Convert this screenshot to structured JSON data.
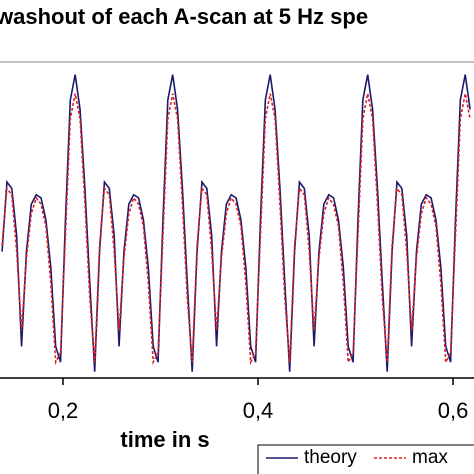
{
  "chart_data": {
    "type": "line",
    "title": "washout of each A-scan at 5 Hz spe",
    "x_label": "time in s",
    "x": [
      0.1375,
      0.1425,
      0.1475,
      0.1525,
      0.1575,
      0.1625,
      0.1675,
      0.1725,
      0.1775,
      0.1825,
      0.1875,
      0.1925,
      0.1975,
      0.2025,
      0.2075,
      0.2125,
      0.2175,
      0.2225,
      0.2275,
      0.2325,
      0.2375,
      0.2425,
      0.2475,
      0.2525,
      0.2575,
      0.2625,
      0.2675,
      0.2725,
      0.2775,
      0.2825,
      0.2875,
      0.2925,
      0.2975,
      0.3025,
      0.3075,
      0.3125,
      0.3175,
      0.3225,
      0.3275,
      0.3325,
      0.3375,
      0.3425,
      0.3475,
      0.3525,
      0.3575,
      0.3625,
      0.3675,
      0.3725,
      0.3775,
      0.3825,
      0.3875,
      0.3925,
      0.3975,
      0.4025,
      0.4075,
      0.4125,
      0.4175,
      0.4225,
      0.4275,
      0.4325,
      0.4375,
      0.4425,
      0.4475,
      0.4525,
      0.4575,
      0.4625,
      0.4675,
      0.4725,
      0.4775,
      0.4825,
      0.4875,
      0.4925,
      0.4975,
      0.5025,
      0.5075,
      0.5125,
      0.5175,
      0.5225,
      0.5275,
      0.5325,
      0.5375,
      0.5425,
      0.5475,
      0.5525,
      0.5575,
      0.5625,
      0.5675,
      0.5725,
      0.5775,
      0.5825,
      0.5875,
      0.5925,
      0.5975,
      0.6025,
      0.6075,
      0.6125,
      0.6175
    ],
    "series": [
      {
        "name": "theory",
        "color": "#1a1a6e",
        "dash": false,
        "values": [
          0.4,
          0.62,
          0.6,
          0.45,
          0.1,
          0.4,
          0.55,
          0.58,
          0.57,
          0.5,
          0.35,
          0.1,
          0.05,
          0.5,
          0.88,
          0.96,
          0.85,
          0.6,
          0.3,
          0.02,
          0.4,
          0.62,
          0.6,
          0.45,
          0.1,
          0.4,
          0.55,
          0.58,
          0.57,
          0.5,
          0.35,
          0.1,
          0.05,
          0.5,
          0.88,
          0.96,
          0.85,
          0.6,
          0.3,
          0.02,
          0.4,
          0.62,
          0.6,
          0.45,
          0.1,
          0.4,
          0.55,
          0.58,
          0.57,
          0.5,
          0.35,
          0.1,
          0.05,
          0.5,
          0.88,
          0.96,
          0.85,
          0.6,
          0.3,
          0.02,
          0.4,
          0.62,
          0.6,
          0.45,
          0.1,
          0.4,
          0.55,
          0.58,
          0.57,
          0.5,
          0.35,
          0.1,
          0.05,
          0.5,
          0.88,
          0.96,
          0.85,
          0.6,
          0.3,
          0.02,
          0.4,
          0.62,
          0.6,
          0.45,
          0.1,
          0.4,
          0.55,
          0.58,
          0.57,
          0.5,
          0.35,
          0.1,
          0.05,
          0.5,
          0.88,
          0.96,
          0.85
        ]
      },
      {
        "name": "max",
        "color": "#e02020",
        "dash": true,
        "values": [
          0.42,
          0.6,
          0.58,
          0.4,
          0.15,
          0.38,
          0.52,
          0.57,
          0.55,
          0.48,
          0.3,
          0.05,
          0.08,
          0.45,
          0.82,
          0.9,
          0.82,
          0.55,
          0.25,
          0.05,
          0.42,
          0.6,
          0.58,
          0.4,
          0.15,
          0.38,
          0.52,
          0.57,
          0.55,
          0.48,
          0.3,
          0.05,
          0.08,
          0.45,
          0.82,
          0.9,
          0.82,
          0.55,
          0.25,
          0.05,
          0.42,
          0.6,
          0.58,
          0.4,
          0.15,
          0.38,
          0.52,
          0.57,
          0.55,
          0.48,
          0.3,
          0.05,
          0.08,
          0.45,
          0.82,
          0.9,
          0.82,
          0.55,
          0.25,
          0.05,
          0.42,
          0.6,
          0.58,
          0.4,
          0.15,
          0.38,
          0.52,
          0.57,
          0.55,
          0.48,
          0.3,
          0.05,
          0.08,
          0.45,
          0.82,
          0.9,
          0.82,
          0.55,
          0.25,
          0.05,
          0.42,
          0.6,
          0.58,
          0.4,
          0.15,
          0.38,
          0.52,
          0.57,
          0.55,
          0.48,
          0.3,
          0.05,
          0.08,
          0.45,
          0.82,
          0.9,
          0.82
        ]
      }
    ],
    "xlim": [
      0.1354,
      0.6215
    ],
    "ylim": [
      0,
      1
    ],
    "xticks": [
      {
        "value": 0.2,
        "label": "0,2"
      },
      {
        "value": 0.4,
        "label": "0,4"
      },
      {
        "value": 0.6,
        "label": "0,6"
      }
    ]
  }
}
